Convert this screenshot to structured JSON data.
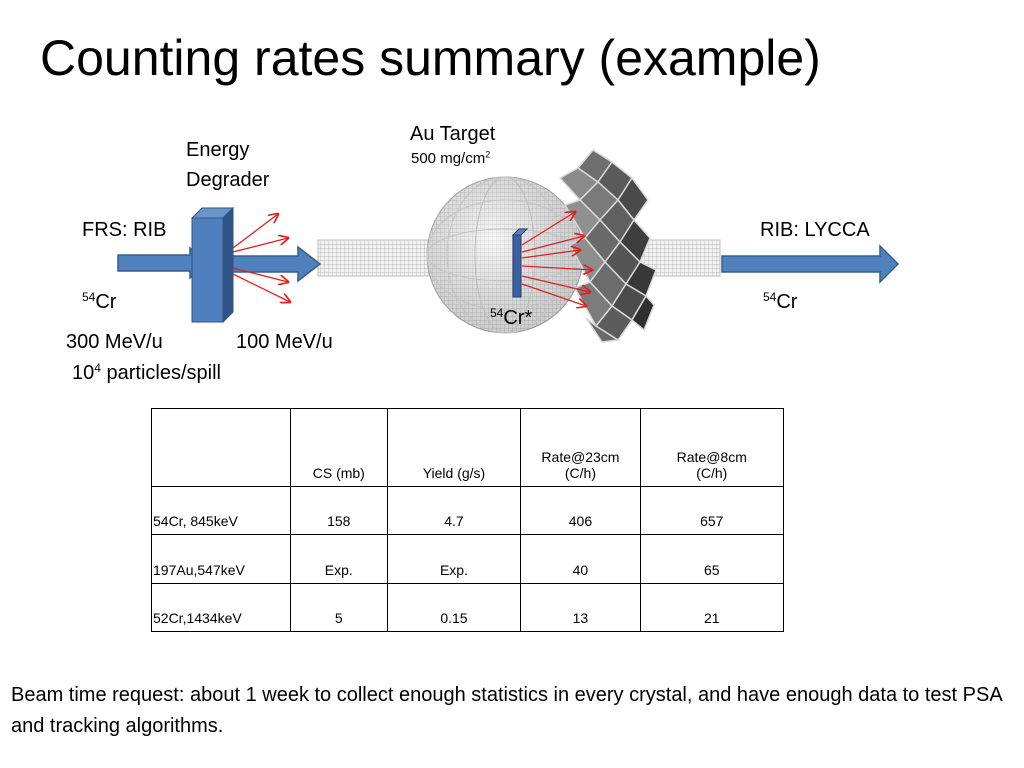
{
  "slide": {
    "title": "Counting rates summary (example)"
  },
  "diagram": {
    "energy_degrader_line1": "Energy",
    "energy_degrader_line2": "Degrader",
    "au_target": "Au Target",
    "target_thickness": "500 mg/cm",
    "target_thickness_exp": "2",
    "frs_rib": "FRS: RIB",
    "rib_lycca": "RIB: LYCCA",
    "beam_in_mass": "54",
    "beam_in_element": "Cr",
    "beam_excited_mass": "54",
    "beam_excited_element": "Cr*",
    "beam_out_mass": "54",
    "beam_out_element": "Cr",
    "energy_in": "300 MeV/u",
    "energy_out": "100 MeV/u",
    "intensity_base": "10",
    "intensity_exp": "4",
    "intensity_unit": " particles/spill",
    "colors": {
      "arrow_blue": "#4f81bd",
      "arrow_blue_dark": "#385d8a",
      "ray_red": "#e02020",
      "target_blue": "#3a62a0",
      "detector_grey": "#7a7a7a"
    }
  },
  "table": {
    "headers": [
      "",
      "CS (mb)",
      "Yield (g/s)",
      "Rate@23cm\n(C/h)",
      "Rate@8cm\n(C/h)"
    ],
    "header_rate23_line1": "Rate@23cm",
    "header_rate23_line2": "(C/h)",
    "header_rate8_line1": "Rate@8cm",
    "header_rate8_line2": "(C/h)",
    "rows": [
      [
        "54Cr, 845keV",
        "158",
        "4.7",
        "406",
        "657"
      ],
      [
        "197Au,547keV",
        "Exp.",
        "Exp.",
        "40",
        "65"
      ],
      [
        "52Cr,1434keV",
        "5",
        "0.15",
        "13",
        "21"
      ]
    ]
  },
  "footer": {
    "text": "Beam time request: about 1 week to collect enough statistics in every crystal, and have enough data to test PSA and tracking algorithms."
  }
}
